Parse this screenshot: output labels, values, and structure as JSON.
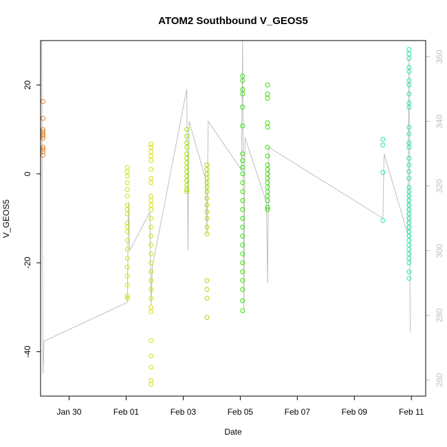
{
  "chart_data": {
    "type": "scatter",
    "title": "ATOM2 Southbound V_GEOS5",
    "xlabel": "Date",
    "ylabel": "V_GEOS5",
    "x_ticks": [
      "Jan 30",
      "Feb 01",
      "Feb 03",
      "Feb 05",
      "Feb 07",
      "Feb 09",
      "Feb 11"
    ],
    "y_ticks": [
      -40,
      -20,
      0,
      20
    ],
    "y_right_ticks": [
      260,
      280,
      300,
      320,
      340,
      360
    ],
    "ylim": [
      -50,
      30
    ],
    "ylim_right": [
      255,
      365
    ],
    "xlim": [
      "2016-01-29T00:00",
      "2016-02-11T12:00"
    ],
    "grid": false,
    "series": [
      {
        "color": "#e67e22",
        "points": [
          [
            "2016-01-29T02:00",
            16.3
          ],
          [
            "2016-01-29T02:00",
            12.5
          ],
          [
            "2016-01-29T02:00",
            10.0
          ],
          [
            "2016-01-29T02:00",
            9.5
          ],
          [
            "2016-01-29T02:00",
            9.0
          ],
          [
            "2016-01-29T02:00",
            8.5
          ],
          [
            "2016-01-29T02:00",
            8.0
          ],
          [
            "2016-01-29T02:00",
            6.0
          ],
          [
            "2016-01-29T02:00",
            5.5
          ],
          [
            "2016-01-29T02:00",
            5.0
          ],
          [
            "2016-01-29T02:00",
            4.2
          ]
        ]
      },
      {
        "color": "#d4e000",
        "points": [
          [
            "2016-02-01T01:00",
            1.5
          ],
          [
            "2016-02-01T01:00",
            0.5
          ],
          [
            "2016-02-01T01:00",
            -0.5
          ],
          [
            "2016-02-01T01:00",
            -2.0
          ],
          [
            "2016-02-01T01:00",
            -3.5
          ],
          [
            "2016-02-01T01:00",
            -5.0
          ],
          [
            "2016-02-01T01:00",
            -7.0
          ],
          [
            "2016-02-01T01:00",
            -9.0
          ],
          [
            "2016-02-01T01:00",
            -11.0
          ],
          [
            "2016-02-01T01:00",
            -13.0
          ],
          [
            "2016-02-01T01:00",
            -15.0
          ],
          [
            "2016-02-01T01:00",
            -17.0
          ],
          [
            "2016-02-01T01:00",
            -19.0
          ],
          [
            "2016-02-01T01:00",
            -21.0
          ],
          [
            "2016-02-01T01:00",
            -23.0
          ],
          [
            "2016-02-01T01:00",
            -25.0
          ],
          [
            "2016-02-01T01:00",
            -27.5
          ],
          [
            "2016-02-01T01:00",
            -28.0
          ],
          [
            "2016-02-01T01:00",
            -12.0
          ],
          [
            "2016-02-01T01:00",
            -8.0
          ],
          [
            "2016-02-01T21:00",
            6.7
          ],
          [
            "2016-02-01T21:00",
            6.0
          ],
          [
            "2016-02-01T21:00",
            5.0
          ],
          [
            "2016-02-01T21:00",
            4.0
          ],
          [
            "2016-02-01T21:00",
            3.0
          ],
          [
            "2016-02-01T21:00",
            1.0
          ],
          [
            "2016-02-01T21:00",
            -1.0
          ],
          [
            "2016-02-01T21:00",
            -2.0
          ],
          [
            "2016-02-01T21:00",
            -5.0
          ],
          [
            "2016-02-01T21:00",
            -6.0
          ],
          [
            "2016-02-01T21:00",
            -7.0
          ],
          [
            "2016-02-01T21:00",
            -8.0
          ],
          [
            "2016-02-01T21:00",
            -10.0
          ],
          [
            "2016-02-01T21:00",
            -12.0
          ],
          [
            "2016-02-01T21:00",
            -14.0
          ],
          [
            "2016-02-01T21:00",
            -16.0
          ],
          [
            "2016-02-01T21:00",
            -18.0
          ],
          [
            "2016-02-01T21:00",
            -20.0
          ],
          [
            "2016-02-01T21:00",
            -22.0
          ],
          [
            "2016-02-01T21:00",
            -24.0
          ],
          [
            "2016-02-01T21:00",
            -26.0
          ],
          [
            "2016-02-01T21:00",
            -28.0
          ],
          [
            "2016-02-01T21:00",
            -30.0
          ],
          [
            "2016-02-01T21:00",
            -31.0
          ],
          [
            "2016-02-01T21:00",
            -37.5
          ],
          [
            "2016-02-01T21:00",
            -41.0
          ],
          [
            "2016-02-01T21:00",
            -43.5
          ],
          [
            "2016-02-01T21:00",
            -46.5
          ],
          [
            "2016-02-01T21:00",
            -47.3
          ]
        ]
      },
      {
        "color": "#a0e000",
        "points": [
          [
            "2016-02-03T03:00",
            10.0
          ],
          [
            "2016-02-03T03:00",
            8.5
          ],
          [
            "2016-02-03T03:00",
            7.0
          ],
          [
            "2016-02-03T03:00",
            6.0
          ],
          [
            "2016-02-03T03:00",
            4.5
          ],
          [
            "2016-02-03T03:00",
            3.5
          ],
          [
            "2016-02-03T03:00",
            2.5
          ],
          [
            "2016-02-03T03:00",
            1.5
          ],
          [
            "2016-02-03T03:00",
            0.5
          ],
          [
            "2016-02-03T03:00",
            -0.5
          ],
          [
            "2016-02-03T03:00",
            -1.5
          ],
          [
            "2016-02-03T03:00",
            -2.5
          ],
          [
            "2016-02-03T03:00",
            -3.5
          ],
          [
            "2016-02-03T03:00",
            -4.0
          ],
          [
            "2016-02-03T20:00",
            2.0
          ],
          [
            "2016-02-03T20:00",
            1.0
          ],
          [
            "2016-02-03T20:00",
            0.0
          ],
          [
            "2016-02-03T20:00",
            -1.0
          ],
          [
            "2016-02-03T20:00",
            -2.0
          ],
          [
            "2016-02-03T20:00",
            -3.0
          ],
          [
            "2016-02-03T20:00",
            -4.0
          ],
          [
            "2016-02-03T20:00",
            -5.5
          ],
          [
            "2016-02-03T20:00",
            -7.0
          ],
          [
            "2016-02-03T20:00",
            -8.5
          ],
          [
            "2016-02-03T20:00",
            -10.0
          ],
          [
            "2016-02-03T20:00",
            -12.0
          ],
          [
            "2016-02-03T20:00",
            -13.5
          ],
          [
            "2016-02-03T20:00",
            -24.0
          ],
          [
            "2016-02-03T20:00",
            -26.0
          ],
          [
            "2016-02-03T20:00",
            -28.0
          ],
          [
            "2016-02-03T20:00",
            -32.3
          ]
        ]
      },
      {
        "color": "#33e000",
        "points": [
          [
            "2016-02-05T02:00",
            22.0
          ],
          [
            "2016-02-05T02:00",
            21.0
          ],
          [
            "2016-02-05T02:00",
            19.0
          ],
          [
            "2016-02-05T02:00",
            18.0
          ],
          [
            "2016-02-05T02:00",
            15.0
          ],
          [
            "2016-02-05T02:00",
            10.8
          ],
          [
            "2016-02-05T02:00",
            4.5
          ],
          [
            "2016-02-05T02:00",
            3.0
          ],
          [
            "2016-02-05T02:00",
            1.5
          ],
          [
            "2016-02-05T02:00",
            0.0
          ],
          [
            "2016-02-05T02:00",
            -2.0
          ],
          [
            "2016-02-05T02:00",
            -4.0
          ],
          [
            "2016-02-05T02:00",
            -6.0
          ],
          [
            "2016-02-05T02:00",
            -8.0
          ],
          [
            "2016-02-05T02:00",
            -10.0
          ],
          [
            "2016-02-05T02:00",
            -12.0
          ],
          [
            "2016-02-05T02:00",
            -14.0
          ],
          [
            "2016-02-05T02:00",
            -16.0
          ],
          [
            "2016-02-05T02:00",
            -18.0
          ],
          [
            "2016-02-05T02:00",
            -20.0
          ],
          [
            "2016-02-05T02:00",
            -22.0
          ],
          [
            "2016-02-05T02:00",
            -24.0
          ],
          [
            "2016-02-05T02:00",
            -26.0
          ],
          [
            "2016-02-05T02:00",
            -28.5
          ],
          [
            "2016-02-05T02:00",
            -30.8
          ],
          [
            "2016-02-05T23:00",
            20.0
          ],
          [
            "2016-02-05T23:00",
            18.0
          ],
          [
            "2016-02-05T23:00",
            17.0
          ],
          [
            "2016-02-05T23:00",
            11.5
          ],
          [
            "2016-02-05T23:00",
            10.5
          ],
          [
            "2016-02-05T23:00",
            6.0
          ],
          [
            "2016-02-05T23:00",
            4.0
          ],
          [
            "2016-02-05T23:00",
            2.0
          ],
          [
            "2016-02-05T23:00",
            1.0
          ],
          [
            "2016-02-05T23:00",
            0.0
          ],
          [
            "2016-02-05T23:00",
            -1.0
          ],
          [
            "2016-02-05T23:00",
            -2.0
          ],
          [
            "2016-02-05T23:00",
            -3.0
          ],
          [
            "2016-02-05T23:00",
            -4.0
          ],
          [
            "2016-02-05T23:00",
            -5.0
          ],
          [
            "2016-02-05T23:00",
            -6.0
          ],
          [
            "2016-02-05T23:00",
            -7.5
          ],
          [
            "2016-02-05T23:00",
            -8.0
          ]
        ]
      },
      {
        "color": "#1ee6a0",
        "points": [
          [
            "2016-02-10T00:00",
            7.8
          ],
          [
            "2016-02-10T00:00",
            6.5
          ],
          [
            "2016-02-10T00:00",
            0.3
          ],
          [
            "2016-02-10T00:00",
            -10.5
          ],
          [
            "2016-02-10T22:00",
            28.0
          ],
          [
            "2016-02-10T22:00",
            27.0
          ],
          [
            "2016-02-10T22:00",
            26.0
          ],
          [
            "2016-02-10T22:00",
            24.0
          ],
          [
            "2016-02-10T22:00",
            23.0
          ],
          [
            "2016-02-10T22:00",
            21.0
          ],
          [
            "2016-02-10T22:00",
            20.0
          ],
          [
            "2016-02-10T22:00",
            18.0
          ],
          [
            "2016-02-10T22:00",
            16.0
          ],
          [
            "2016-02-10T22:00",
            15.0
          ],
          [
            "2016-02-10T22:00",
            10.5
          ],
          [
            "2016-02-10T22:00",
            9.0
          ],
          [
            "2016-02-10T22:00",
            7.0
          ],
          [
            "2016-02-10T22:00",
            6.0
          ],
          [
            "2016-02-10T22:00",
            3.5
          ],
          [
            "2016-02-10T22:00",
            2.0
          ],
          [
            "2016-02-10T22:00",
            0.5
          ],
          [
            "2016-02-10T22:00",
            -1.0
          ],
          [
            "2016-02-10T22:00",
            -3.0
          ],
          [
            "2016-02-10T22:00",
            -4.0
          ],
          [
            "2016-02-10T22:00",
            -5.0
          ],
          [
            "2016-02-10T22:00",
            -6.0
          ],
          [
            "2016-02-10T22:00",
            -7.0
          ],
          [
            "2016-02-10T22:00",
            -8.0
          ],
          [
            "2016-02-10T22:00",
            -9.0
          ],
          [
            "2016-02-10T22:00",
            -10.0
          ],
          [
            "2016-02-10T22:00",
            -11.0
          ],
          [
            "2016-02-10T22:00",
            -12.0
          ],
          [
            "2016-02-10T22:00",
            -13.0
          ],
          [
            "2016-02-10T22:00",
            -14.0
          ],
          [
            "2016-02-10T22:00",
            -15.0
          ],
          [
            "2016-02-10T22:00",
            -16.0
          ],
          [
            "2016-02-10T22:00",
            -17.0
          ],
          [
            "2016-02-10T22:00",
            -18.0
          ],
          [
            "2016-02-10T22:00",
            -19.0
          ],
          [
            "2016-02-10T22:00",
            -20.0
          ],
          [
            "2016-02-10T22:00",
            -22.0
          ],
          [
            "2016-02-10T22:00",
            -23.5
          ]
        ]
      }
    ],
    "line_series": {
      "color": "#bebebe",
      "points": [
        [
          "2016-01-29T01:00",
          365
        ],
        [
          "2016-01-29T02:00",
          262
        ],
        [
          "2016-01-29T03:00",
          272
        ],
        [
          "2016-02-01T01:00",
          284
        ],
        [
          "2016-02-01T02:00",
          315
        ],
        [
          "2016-02-01T03:00",
          300
        ],
        [
          "2016-02-01T20:00",
          312
        ],
        [
          "2016-02-01T21:00",
          283
        ],
        [
          "2016-02-01T22:00",
          295
        ],
        [
          "2016-02-03T03:00",
          350
        ],
        [
          "2016-02-03T04:00",
          300
        ],
        [
          "2016-02-03T05:00",
          340
        ],
        [
          "2016-02-03T19:00",
          322
        ],
        [
          "2016-02-03T20:00",
          305
        ],
        [
          "2016-02-03T21:00",
          340
        ],
        [
          "2016-02-05T01:00",
          325
        ],
        [
          "2016-02-05T02:00",
          365
        ],
        [
          "2016-02-05T03:00",
          282
        ],
        [
          "2016-02-05T04:00",
          335
        ],
        [
          "2016-02-05T22:00",
          315
        ],
        [
          "2016-02-05T23:00",
          290
        ],
        [
          "2016-02-06T00:00",
          332
        ],
        [
          "2016-02-10T00:00",
          310
        ],
        [
          "2016-02-10T01:00",
          330
        ],
        [
          "2016-02-10T21:00",
          305
        ],
        [
          "2016-02-10T22:00",
          360
        ],
        [
          "2016-02-10T23:00",
          275
        ]
      ]
    }
  }
}
